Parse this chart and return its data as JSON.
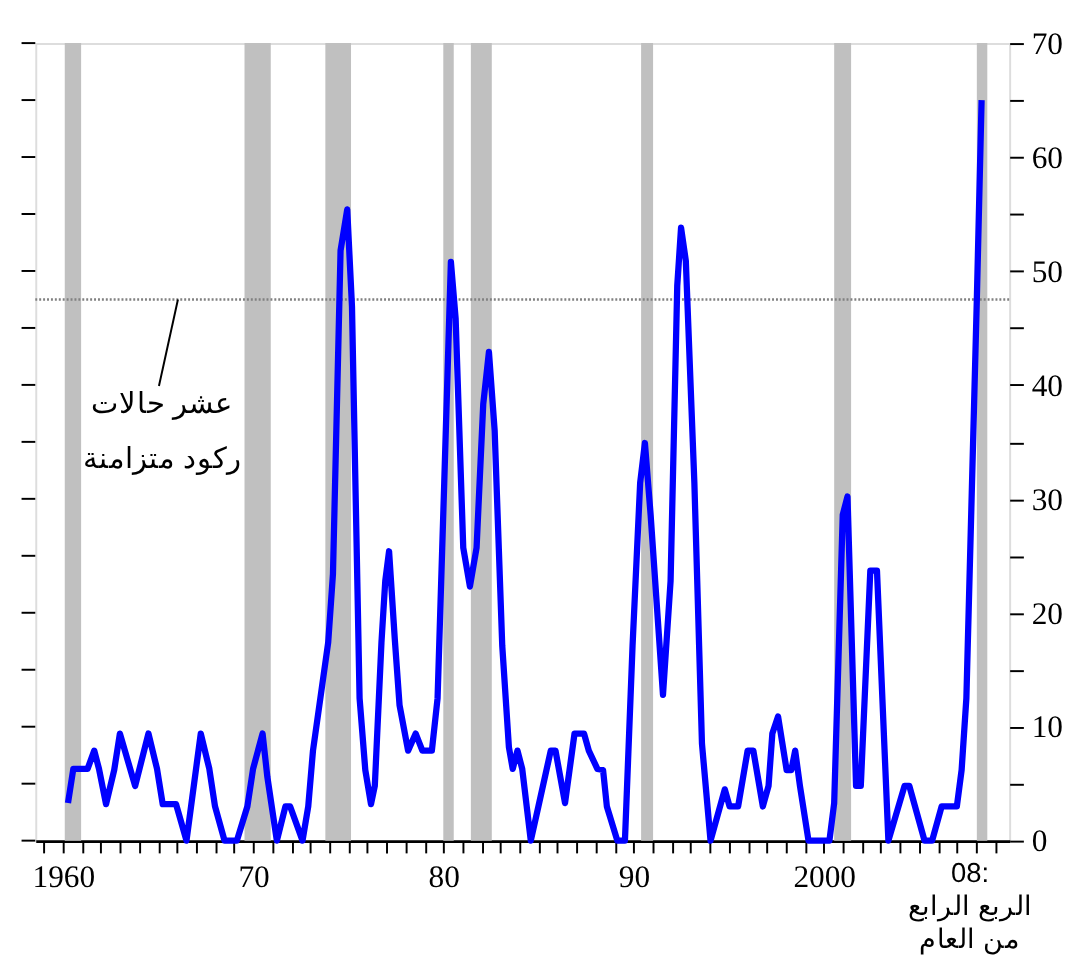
{
  "chart_data": {
    "type": "line",
    "x": [
      1960.27,
      1960.55,
      1961.3,
      1961.65,
      1961.9,
      1962.27,
      1962.7,
      1963.0,
      1963.8,
      1964.5,
      1964.95,
      1965.25,
      1965.95,
      1966.5,
      1967.25,
      1967.7,
      1968.0,
      1968.5,
      1969.15,
      1969.7,
      1970.0,
      1970.5,
      1970.75,
      1971.25,
      1971.7,
      1971.95,
      1972.6,
      1972.9,
      1973.15,
      1973.95,
      1974.2,
      1974.6,
      1974.95,
      1975.2,
      1975.6,
      1975.9,
      1976.2,
      1976.4,
      1976.75,
      1976.95,
      1977.15,
      1977.45,
      1977.7,
      1978.15,
      1978.55,
      1978.9,
      1979.4,
      1979.7,
      1980.05,
      1980.4,
      1980.65,
      1981.05,
      1981.4,
      1981.75,
      1982.1,
      1982.4,
      1982.7,
      1983.1,
      1983.45,
      1983.65,
      1983.9,
      1984.15,
      1984.6,
      1985.0,
      1985.65,
      1985.9,
      1986.4,
      1986.9,
      1987.4,
      1987.65,
      1988.1,
      1988.4,
      1988.6,
      1989.15,
      1989.55,
      1989.95,
      1990.35,
      1990.6,
      1990.9,
      1991.55,
      1991.95,
      1992.3,
      1992.5,
      1992.75,
      1993.2,
      1993.6,
      1994.05,
      1994.8,
      1995.05,
      1995.5,
      1996.0,
      1996.3,
      1996.8,
      1997.1,
      1997.3,
      1997.6,
      1998.05,
      1998.3,
      1998.5,
      1998.75,
      1999.2,
      2000.3,
      2000.55,
      2001.0,
      2001.25,
      2001.7,
      2001.95,
      2002.45,
      2002.8,
      2003.4,
      2004.25,
      2004.5,
      2005.3,
      2005.7,
      2006.2,
      2007.0,
      2007.25,
      2007.5,
      2008.05,
      2008.3
    ],
    "series": [
      {
        "color": "#0000ff",
        "values": [
          3.3,
          6.3,
          6.3,
          7.9,
          6.3,
          3.2,
          6.2,
          9.4,
          4.8,
          9.4,
          6.3,
          3.2,
          3.2,
          0,
          9.4,
          6.3,
          3,
          0,
          0,
          3,
          6.3,
          9.4,
          5.6,
          0,
          3,
          3,
          0,
          3,
          7.9,
          17.4,
          23.4,
          51.8,
          55.4,
          46.9,
          12.5,
          6.2,
          3.2,
          4.8,
          17.4,
          22.8,
          25.4,
          17.7,
          11.9,
          7.9,
          9.4,
          7.9,
          7.9,
          12.5,
          31.4,
          50.8,
          45.8,
          25.7,
          22.3,
          25.7,
          38.3,
          42.9,
          36,
          17.1,
          8.2,
          6.3,
          7.9,
          6.3,
          0,
          3,
          7.9,
          7.9,
          3.3,
          9.4,
          9.4,
          7.9,
          6.3,
          6.2,
          3,
          0,
          0,
          17.1,
          31.4,
          34.9,
          28.6,
          12.8,
          22.8,
          48.7,
          53.8,
          50.9,
          31.4,
          8.5,
          0,
          4.5,
          3,
          3,
          7.9,
          7.9,
          3,
          4.8,
          9.4,
          10.9,
          6.2,
          6.2,
          7.9,
          4.8,
          0,
          0,
          3.3,
          28.6,
          30.2,
          4.8,
          4.8,
          23.7,
          23.7,
          0,
          4.8,
          4.8,
          0,
          0,
          3,
          3,
          6.2,
          12.5,
          47.5,
          65
        ]
      }
    ],
    "xlim": [
      1958.55,
      2009.75
    ],
    "xticks": [
      {
        "value": 1959,
        "label": null
      },
      {
        "value": 1960,
        "label": "1960"
      },
      {
        "value": 1961,
        "label": null
      },
      {
        "value": 1962,
        "label": null
      },
      {
        "value": 1963,
        "label": null
      },
      {
        "value": 1964,
        "label": null
      },
      {
        "value": 1965,
        "label": null
      },
      {
        "value": 1966,
        "label": null
      },
      {
        "value": 1967,
        "label": null
      },
      {
        "value": 1968,
        "label": null
      },
      {
        "value": 1969,
        "label": null
      },
      {
        "value": 1970,
        "label": "70"
      },
      {
        "value": 1971,
        "label": null
      },
      {
        "value": 1972,
        "label": null
      },
      {
        "value": 1973,
        "label": null
      },
      {
        "value": 1974,
        "label": null
      },
      {
        "value": 1975,
        "label": null
      },
      {
        "value": 1976,
        "label": null
      },
      {
        "value": 1977,
        "label": null
      },
      {
        "value": 1978,
        "label": null
      },
      {
        "value": 1979,
        "label": null
      },
      {
        "value": 1980,
        "label": "80"
      },
      {
        "value": 1981,
        "label": null
      },
      {
        "value": 1982,
        "label": null
      },
      {
        "value": 1983,
        "label": null
      },
      {
        "value": 1984,
        "label": null
      },
      {
        "value": 1985,
        "label": null
      },
      {
        "value": 1986,
        "label": null
      },
      {
        "value": 1987,
        "label": null
      },
      {
        "value": 1988,
        "label": null
      },
      {
        "value": 1989,
        "label": null
      },
      {
        "value": 1990,
        "label": "90"
      },
      {
        "value": 1991,
        "label": null
      },
      {
        "value": 1992,
        "label": null
      },
      {
        "value": 1993,
        "label": null
      },
      {
        "value": 1994,
        "label": null
      },
      {
        "value": 1995,
        "label": null
      },
      {
        "value": 1996,
        "label": null
      },
      {
        "value": 1997,
        "label": null
      },
      {
        "value": 1998,
        "label": null
      },
      {
        "value": 1999,
        "label": null
      },
      {
        "value": 2000,
        "label": "2000"
      },
      {
        "value": 2001,
        "label": null
      },
      {
        "value": 2002,
        "label": null
      },
      {
        "value": 2003,
        "label": null
      },
      {
        "value": 2004,
        "label": null
      },
      {
        "value": 2005,
        "label": null
      },
      {
        "value": 2006,
        "label": null
      },
      {
        "value": 2007,
        "label": null
      },
      {
        "value": 2008,
        "label": null
      },
      {
        "value": 2009,
        "label": null
      }
    ],
    "ylim": [
      0,
      70
    ],
    "yticks": [
      0,
      {
        "value": 5,
        "label": null
      },
      10,
      {
        "value": 15,
        "label": null
      },
      20,
      {
        "value": 25,
        "label": null
      },
      30,
      {
        "value": 35,
        "label": null
      },
      40,
      {
        "value": 45,
        "label": null
      },
      50,
      {
        "value": 55,
        "label": null
      },
      60,
      {
        "value": 65,
        "label": null
      },
      70
    ],
    "bands": [
      {
        "axis": "x",
        "from": 1960.1,
        "to": 1960.96,
        "color": "#c0c0c0"
      },
      {
        "axis": "x",
        "from": 1969.55,
        "to": 1970.93,
        "color": "#c0c0c0"
      },
      {
        "axis": "x",
        "from": 1973.8,
        "to": 1975.15,
        "color": "#c0c0c0"
      },
      {
        "axis": "x",
        "from": 1980.0,
        "to": 1980.55,
        "color": "#c0c0c0"
      },
      {
        "axis": "x",
        "from": 1981.45,
        "to": 1982.55,
        "color": "#c0c0c0"
      },
      {
        "axis": "x",
        "from": 1990.4,
        "to": 1991.03,
        "color": "#c0c0c0"
      },
      {
        "axis": "x",
        "from": 2000.55,
        "to": 2001.44,
        "color": "#c0c0c0"
      },
      {
        "axis": "x",
        "from": 2008.05,
        "to": 2008.6,
        "color": "#c0c0c0"
      }
    ],
    "ref_lines": [
      {
        "axis": "y",
        "value": 47.5,
        "color": "#808080",
        "line_style": "dotted"
      }
    ],
    "annotations": [
      {
        "text": "عشر حالات\nركود متزامنة",
        "x": 1966.05,
        "y": 47.5
      },
      "08:\nالربع الرابع\nمن العام"
    ],
    "grid": false,
    "line_style": "solid",
    "marker": "none"
  }
}
